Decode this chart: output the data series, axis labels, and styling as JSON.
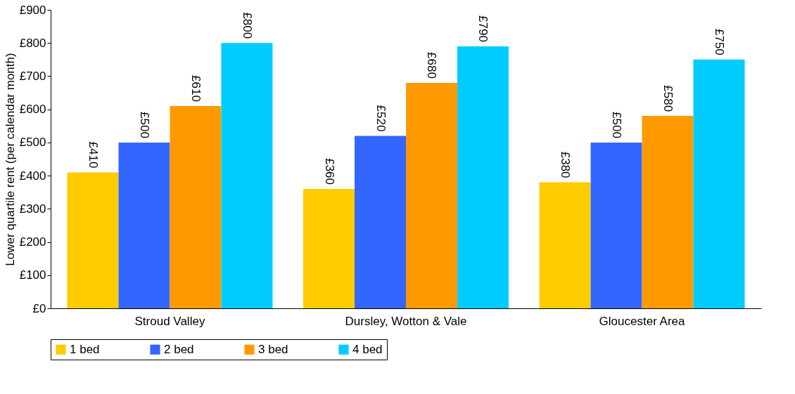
{
  "chart_data": {
    "type": "bar",
    "ylabel": "Lower quartile rent (per calendar month)",
    "categories": [
      "Stroud Valley",
      "Dursley, Wotton & Vale",
      "Gloucester Area"
    ],
    "series": [
      {
        "name": "1 bed",
        "color": "#ffcc00",
        "values": [
          410,
          360,
          380
        ],
        "value_labels": [
          "£410",
          "£360",
          "£380"
        ]
      },
      {
        "name": "2 bed",
        "color": "#3366ff",
        "values": [
          500,
          520,
          500
        ],
        "value_labels": [
          "£500",
          "£520",
          "£500"
        ]
      },
      {
        "name": "3 bed",
        "color": "#ff9900",
        "values": [
          610,
          680,
          580
        ],
        "value_labels": [
          "£610",
          "£680",
          "£580"
        ]
      },
      {
        "name": "4 bed",
        "color": "#00ccff",
        "values": [
          800,
          790,
          750
        ],
        "value_labels": [
          "£800",
          "£790",
          "£750"
        ]
      }
    ],
    "ylim": [
      0,
      900
    ],
    "yticks": [
      {
        "value": 0,
        "label": "£0"
      },
      {
        "value": 100,
        "label": "£100"
      },
      {
        "value": 200,
        "label": "£200"
      },
      {
        "value": 300,
        "label": "£300"
      },
      {
        "value": 400,
        "label": "£400"
      },
      {
        "value": 500,
        "label": "£500"
      },
      {
        "value": 600,
        "label": "£600"
      },
      {
        "value": 700,
        "label": "£700"
      },
      {
        "value": 800,
        "label": "£800"
      },
      {
        "value": 900,
        "label": "£900"
      }
    ],
    "grid": false,
    "legend": "bottom"
  }
}
